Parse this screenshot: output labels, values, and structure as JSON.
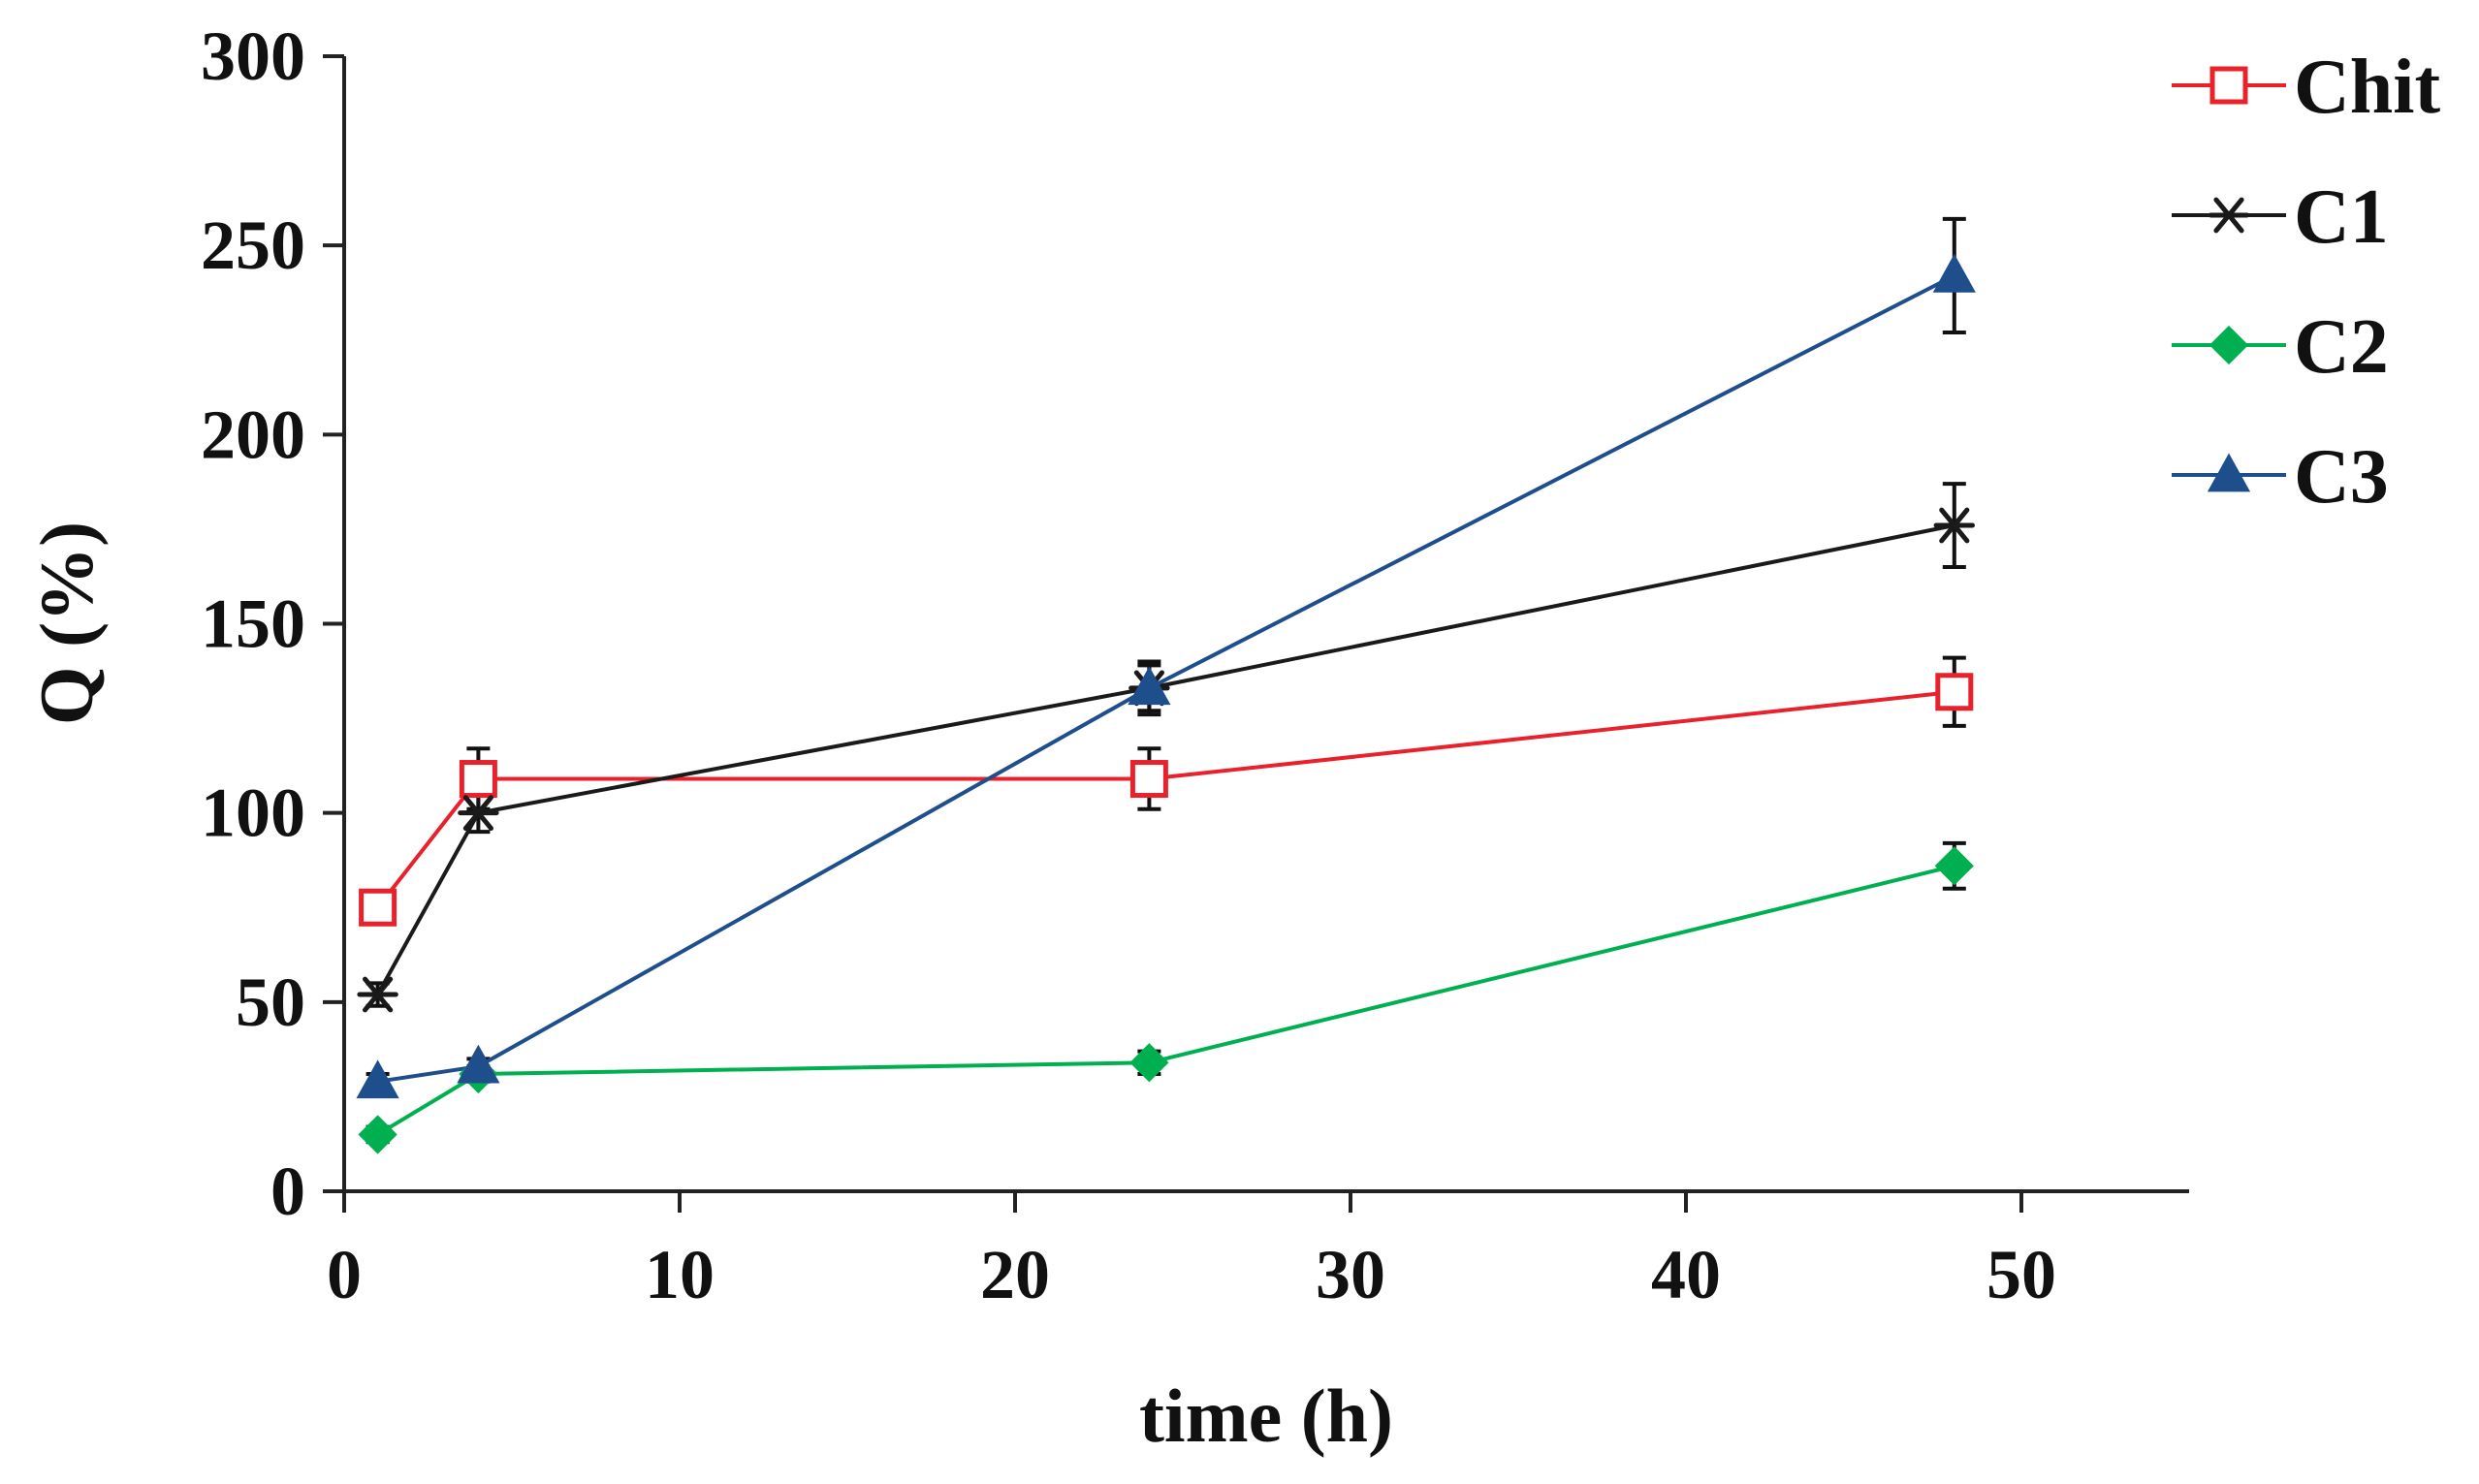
{
  "chart_data": {
    "type": "line",
    "title": "",
    "xlabel": "time (h)",
    "ylabel": "Q (%)",
    "xlim": [
      0,
      55
    ],
    "ylim": [
      0,
      300
    ],
    "xticks": [
      0,
      10,
      20,
      30,
      40,
      50
    ],
    "yticks": [
      0,
      50,
      100,
      150,
      200,
      250,
      300
    ],
    "grid": false,
    "legend_position": "top-right",
    "x": [
      1,
      4,
      24,
      48
    ],
    "series": [
      {
        "name": "Chit",
        "color": "#e8212b",
        "marker": "open-square",
        "values": [
          75,
          109,
          109,
          132
        ],
        "errors": [
          4,
          8,
          8,
          9
        ]
      },
      {
        "name": "C1",
        "color": "#1a1a1a",
        "marker": "asterisk",
        "values": [
          52,
          100,
          133,
          176
        ],
        "errors": [
          3,
          5,
          7,
          11
        ]
      },
      {
        "name": "C2",
        "color": "#00b050",
        "marker": "diamond",
        "values": [
          15,
          31,
          34,
          86
        ],
        "errors": [
          2,
          2,
          3,
          6
        ]
      },
      {
        "name": "C3",
        "color": "#1f4e8c",
        "marker": "triangle",
        "values": [
          29,
          33,
          133,
          242
        ],
        "errors": [
          2,
          2,
          6,
          15
        ]
      }
    ]
  }
}
